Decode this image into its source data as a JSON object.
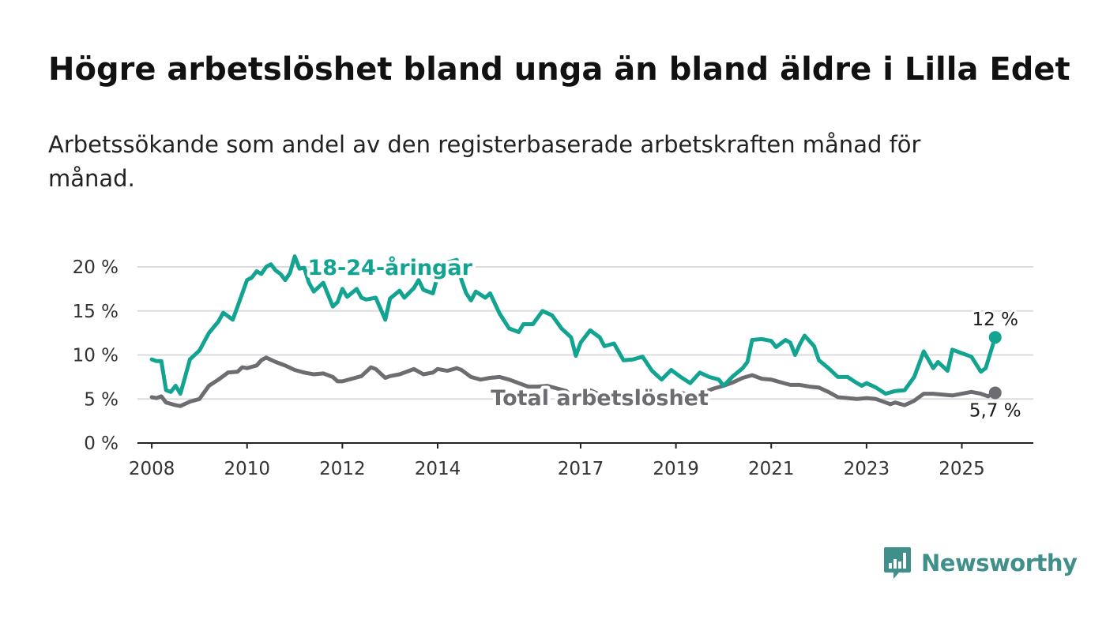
{
  "header": {
    "title": "Högre arbetslöshet bland unga än bland äldre i Lilla Edet",
    "subtitle": "Arbetssökande som andel av den registerbaserade arbetskraften månad för månad."
  },
  "brand": {
    "name": "Newsworthy",
    "color": "#3f8f8a"
  },
  "chart_data": {
    "type": "line",
    "title": "Högre arbetslöshet bland unga än bland äldre i Lilla Edet",
    "subtitle": "Arbetssökande som andel av den registerbaserade arbetskraften månad för månad.",
    "xlabel": "",
    "ylabel": "",
    "x_unit": "year",
    "xlim": [
      2007.7,
      2026.5
    ],
    "ylim": [
      0,
      20
    ],
    "grid": "horizontal",
    "legend": "direct labels on lines",
    "x_ticks": [
      {
        "value": 2008,
        "label": "2008"
      },
      {
        "value": 2010,
        "label": "2010"
      },
      {
        "value": 2012,
        "label": "2012"
      },
      {
        "value": 2014,
        "label": "2014"
      },
      {
        "value": 2017,
        "label": "2017"
      },
      {
        "value": 2019,
        "label": "2019"
      },
      {
        "value": 2021,
        "label": "2021"
      },
      {
        "value": 2023,
        "label": "2023"
      },
      {
        "value": 2025,
        "label": "2025"
      }
    ],
    "y_ticks": [
      {
        "value": 0,
        "label": "0 %"
      },
      {
        "value": 5,
        "label": "5 %"
      },
      {
        "value": 10,
        "label": "10 %"
      },
      {
        "value": 15,
        "label": "15 %"
      },
      {
        "value": 20,
        "label": "20 %"
      }
    ],
    "series": [
      {
        "name": "Total arbetslöshet",
        "color": "#6d6c70",
        "label_anchor": [
          2017.4,
          5.2
        ],
        "end_label": "5,7 %",
        "points": [
          [
            2008.0,
            5.2
          ],
          [
            2008.1,
            5.1
          ],
          [
            2008.2,
            5.3
          ],
          [
            2008.3,
            4.6
          ],
          [
            2008.5,
            4.3
          ],
          [
            2008.6,
            4.2
          ],
          [
            2008.8,
            4.7
          ],
          [
            2009.0,
            5.0
          ],
          [
            2009.2,
            6.5
          ],
          [
            2009.4,
            7.2
          ],
          [
            2009.6,
            8.0
          ],
          [
            2009.8,
            8.1
          ],
          [
            2009.9,
            8.6
          ],
          [
            2010.0,
            8.5
          ],
          [
            2010.2,
            8.8
          ],
          [
            2010.3,
            9.4
          ],
          [
            2010.4,
            9.7
          ],
          [
            2010.6,
            9.2
          ],
          [
            2010.8,
            8.8
          ],
          [
            2011.0,
            8.3
          ],
          [
            2011.2,
            8.0
          ],
          [
            2011.4,
            7.8
          ],
          [
            2011.6,
            7.9
          ],
          [
            2011.8,
            7.5
          ],
          [
            2011.9,
            7.0
          ],
          [
            2012.0,
            7.0
          ],
          [
            2012.2,
            7.3
          ],
          [
            2012.4,
            7.6
          ],
          [
            2012.6,
            8.6
          ],
          [
            2012.7,
            8.4
          ],
          [
            2012.9,
            7.4
          ],
          [
            2013.0,
            7.6
          ],
          [
            2013.2,
            7.8
          ],
          [
            2013.4,
            8.2
          ],
          [
            2013.5,
            8.4
          ],
          [
            2013.7,
            7.8
          ],
          [
            2013.9,
            8.0
          ],
          [
            2014.0,
            8.4
          ],
          [
            2014.2,
            8.2
          ],
          [
            2014.4,
            8.5
          ],
          [
            2014.5,
            8.3
          ],
          [
            2014.7,
            7.5
          ],
          [
            2014.9,
            7.2
          ],
          [
            2015.1,
            7.4
          ],
          [
            2015.3,
            7.5
          ],
          [
            2015.5,
            7.2
          ],
          [
            2015.7,
            6.8
          ],
          [
            2015.9,
            6.4
          ],
          [
            2016.1,
            6.4
          ],
          [
            2016.3,
            6.5
          ],
          [
            2016.5,
            6.2
          ],
          [
            2016.7,
            5.9
          ],
          [
            2016.8,
            5.3
          ],
          [
            2017.0,
            5.7
          ],
          [
            2017.2,
            6.0
          ],
          [
            2017.4,
            5.5
          ],
          [
            2017.6,
            5.3
          ],
          [
            2017.8,
            5.0
          ],
          [
            2018.0,
            5.3
          ],
          [
            2018.2,
            5.6
          ],
          [
            2018.4,
            5.4
          ],
          [
            2018.6,
            5.1
          ],
          [
            2018.8,
            5.3
          ],
          [
            2019.0,
            5.8
          ],
          [
            2019.2,
            5.6
          ],
          [
            2019.4,
            5.5
          ],
          [
            2019.6,
            5.8
          ],
          [
            2019.8,
            6.2
          ],
          [
            2020.0,
            6.5
          ],
          [
            2020.2,
            6.9
          ],
          [
            2020.4,
            7.4
          ],
          [
            2020.6,
            7.7
          ],
          [
            2020.8,
            7.3
          ],
          [
            2021.0,
            7.2
          ],
          [
            2021.2,
            6.9
          ],
          [
            2021.4,
            6.6
          ],
          [
            2021.6,
            6.6
          ],
          [
            2021.8,
            6.4
          ],
          [
            2022.0,
            6.3
          ],
          [
            2022.2,
            5.8
          ],
          [
            2022.4,
            5.2
          ],
          [
            2022.6,
            5.1
          ],
          [
            2022.8,
            5.0
          ],
          [
            2023.0,
            5.1
          ],
          [
            2023.2,
            5.0
          ],
          [
            2023.4,
            4.6
          ],
          [
            2023.5,
            4.4
          ],
          [
            2023.6,
            4.6
          ],
          [
            2023.8,
            4.3
          ],
          [
            2024.0,
            4.8
          ],
          [
            2024.1,
            5.2
          ],
          [
            2024.2,
            5.6
          ],
          [
            2024.4,
            5.6
          ],
          [
            2024.6,
            5.5
          ],
          [
            2024.8,
            5.4
          ],
          [
            2025.0,
            5.6
          ],
          [
            2025.2,
            5.8
          ],
          [
            2025.4,
            5.6
          ],
          [
            2025.55,
            5.3
          ],
          [
            2025.7,
            5.7
          ]
        ]
      },
      {
        "name": "18-24-åringar",
        "color": "#12a391",
        "label_anchor": [
          2013.0,
          20.0
        ],
        "end_label": "12 %",
        "points": [
          [
            2008.0,
            9.5
          ],
          [
            2008.1,
            9.3
          ],
          [
            2008.2,
            9.3
          ],
          [
            2008.3,
            6.0
          ],
          [
            2008.4,
            5.8
          ],
          [
            2008.5,
            6.5
          ],
          [
            2008.6,
            5.6
          ],
          [
            2008.7,
            7.5
          ],
          [
            2008.8,
            9.5
          ],
          [
            2009.0,
            10.5
          ],
          [
            2009.2,
            12.5
          ],
          [
            2009.4,
            13.8
          ],
          [
            2009.5,
            14.8
          ],
          [
            2009.7,
            14.0
          ],
          [
            2009.8,
            15.5
          ],
          [
            2010.0,
            18.5
          ],
          [
            2010.1,
            18.8
          ],
          [
            2010.2,
            19.5
          ],
          [
            2010.3,
            19.2
          ],
          [
            2010.4,
            20.0
          ],
          [
            2010.5,
            20.3
          ],
          [
            2010.6,
            19.6
          ],
          [
            2010.7,
            19.2
          ],
          [
            2010.8,
            18.5
          ],
          [
            2010.9,
            19.3
          ],
          [
            2011.0,
            21.2
          ],
          [
            2011.1,
            19.8
          ],
          [
            2011.2,
            19.9
          ],
          [
            2011.3,
            18.2
          ],
          [
            2011.4,
            17.2
          ],
          [
            2011.6,
            18.2
          ],
          [
            2011.8,
            15.5
          ],
          [
            2011.9,
            16.0
          ],
          [
            2012.0,
            17.5
          ],
          [
            2012.1,
            16.6
          ],
          [
            2012.3,
            17.5
          ],
          [
            2012.4,
            16.5
          ],
          [
            2012.5,
            16.3
          ],
          [
            2012.7,
            16.5
          ],
          [
            2012.9,
            14.0
          ],
          [
            2013.0,
            16.4
          ],
          [
            2013.2,
            17.3
          ],
          [
            2013.3,
            16.5
          ],
          [
            2013.5,
            17.6
          ],
          [
            2013.6,
            18.5
          ],
          [
            2013.7,
            17.4
          ],
          [
            2013.9,
            17.0
          ],
          [
            2014.0,
            19.0
          ],
          [
            2014.2,
            20.5
          ],
          [
            2014.4,
            20.8
          ],
          [
            2014.5,
            18.5
          ],
          [
            2014.6,
            17.0
          ],
          [
            2014.7,
            16.2
          ],
          [
            2014.8,
            17.2
          ],
          [
            2015.0,
            16.5
          ],
          [
            2015.1,
            17.0
          ],
          [
            2015.3,
            14.7
          ],
          [
            2015.5,
            13.0
          ],
          [
            2015.7,
            12.6
          ],
          [
            2015.8,
            13.5
          ],
          [
            2016.0,
            13.5
          ],
          [
            2016.2,
            15.0
          ],
          [
            2016.4,
            14.5
          ],
          [
            2016.6,
            13.0
          ],
          [
            2016.8,
            12.0
          ],
          [
            2016.9,
            9.9
          ],
          [
            2017.0,
            11.4
          ],
          [
            2017.2,
            12.8
          ],
          [
            2017.4,
            12.0
          ],
          [
            2017.5,
            11.0
          ],
          [
            2017.7,
            11.3
          ],
          [
            2017.9,
            9.4
          ],
          [
            2018.1,
            9.5
          ],
          [
            2018.3,
            9.8
          ],
          [
            2018.5,
            8.2
          ],
          [
            2018.7,
            7.2
          ],
          [
            2018.9,
            8.3
          ],
          [
            2019.1,
            7.5
          ],
          [
            2019.3,
            6.8
          ],
          [
            2019.5,
            8.0
          ],
          [
            2019.7,
            7.5
          ],
          [
            2019.9,
            7.2
          ],
          [
            2020.0,
            6.5
          ],
          [
            2020.2,
            7.6
          ],
          [
            2020.4,
            8.5
          ],
          [
            2020.5,
            9.2
          ],
          [
            2020.6,
            11.7
          ],
          [
            2020.8,
            11.8
          ],
          [
            2021.0,
            11.6
          ],
          [
            2021.1,
            10.9
          ],
          [
            2021.3,
            11.7
          ],
          [
            2021.4,
            11.4
          ],
          [
            2021.5,
            10.0
          ],
          [
            2021.6,
            11.2
          ],
          [
            2021.7,
            12.2
          ],
          [
            2021.9,
            11.0
          ],
          [
            2022.0,
            9.4
          ],
          [
            2022.2,
            8.5
          ],
          [
            2022.4,
            7.5
          ],
          [
            2022.6,
            7.5
          ],
          [
            2022.8,
            6.8
          ],
          [
            2022.9,
            6.5
          ],
          [
            2023.0,
            6.8
          ],
          [
            2023.2,
            6.3
          ],
          [
            2023.4,
            5.6
          ],
          [
            2023.6,
            5.9
          ],
          [
            2023.8,
            6.0
          ],
          [
            2024.0,
            7.5
          ],
          [
            2024.2,
            10.4
          ],
          [
            2024.4,
            8.5
          ],
          [
            2024.5,
            9.2
          ],
          [
            2024.7,
            8.2
          ],
          [
            2024.8,
            10.6
          ],
          [
            2025.0,
            10.2
          ],
          [
            2025.2,
            9.8
          ],
          [
            2025.4,
            8.1
          ],
          [
            2025.5,
            8.5
          ],
          [
            2025.7,
            12.0
          ]
        ]
      }
    ]
  }
}
